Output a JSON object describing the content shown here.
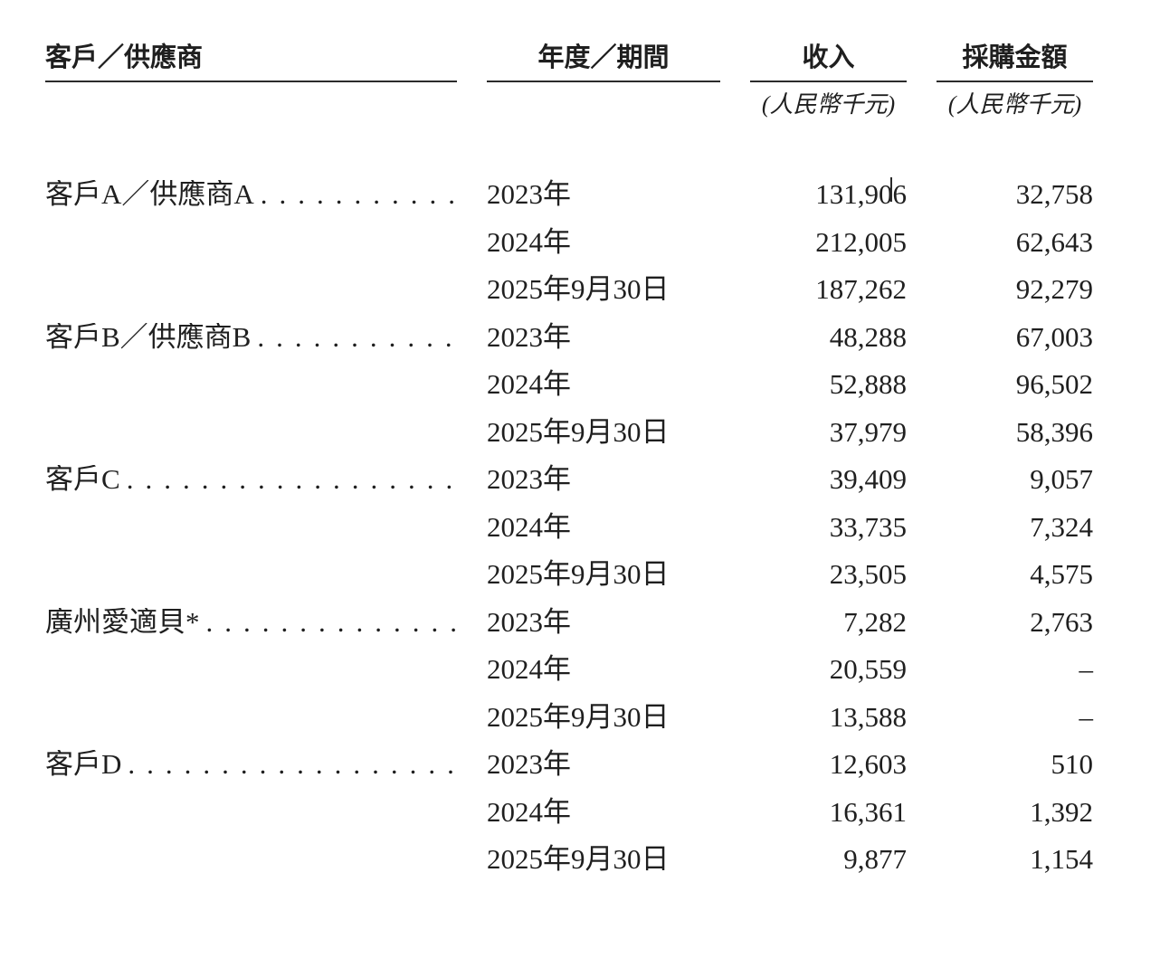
{
  "table": {
    "columns": {
      "entity": "客戶／供應商",
      "period": "年度／期間",
      "revenue": "收入",
      "purchase": "採購金額",
      "unit_revenue": "(人民幣千元)",
      "unit_purchase": "(人民幣千元)"
    },
    "leader_dots": "........................................",
    "groups": [
      {
        "entity": "客戶A／供應商A",
        "rows": [
          {
            "period": "2023年",
            "revenue": "131,906",
            "purchase": "32,758"
          },
          {
            "period": "2024年",
            "revenue": "212,005",
            "purchase": "62,643"
          },
          {
            "period": "2025年9月30日",
            "revenue": "187,262",
            "purchase": "92,279"
          }
        ]
      },
      {
        "entity": "客戶B／供應商B",
        "rows": [
          {
            "period": "2023年",
            "revenue": "48,288",
            "purchase": "67,003"
          },
          {
            "period": "2024年",
            "revenue": "52,888",
            "purchase": "96,502"
          },
          {
            "period": "2025年9月30日",
            "revenue": "37,979",
            "purchase": "58,396"
          }
        ]
      },
      {
        "entity": "客戶C",
        "rows": [
          {
            "period": "2023年",
            "revenue": "39,409",
            "purchase": "9,057"
          },
          {
            "period": "2024年",
            "revenue": "33,735",
            "purchase": "7,324"
          },
          {
            "period": "2025年9月30日",
            "revenue": "23,505",
            "purchase": "4,575"
          }
        ]
      },
      {
        "entity": "廣州愛適貝*",
        "rows": [
          {
            "period": "2023年",
            "revenue": "7,282",
            "purchase": "2,763"
          },
          {
            "period": "2024年",
            "revenue": "20,559",
            "purchase": "–"
          },
          {
            "period": "2025年9月30日",
            "revenue": "13,588",
            "purchase": "–"
          }
        ]
      },
      {
        "entity": "客戶D",
        "rows": [
          {
            "period": "2023年",
            "revenue": "12,603",
            "purchase": "510"
          },
          {
            "period": "2024年",
            "revenue": "16,361",
            "purchase": "1,392"
          },
          {
            "period": "2025年9月30日",
            "revenue": "9,877",
            "purchase": "1,154"
          }
        ]
      }
    ]
  }
}
